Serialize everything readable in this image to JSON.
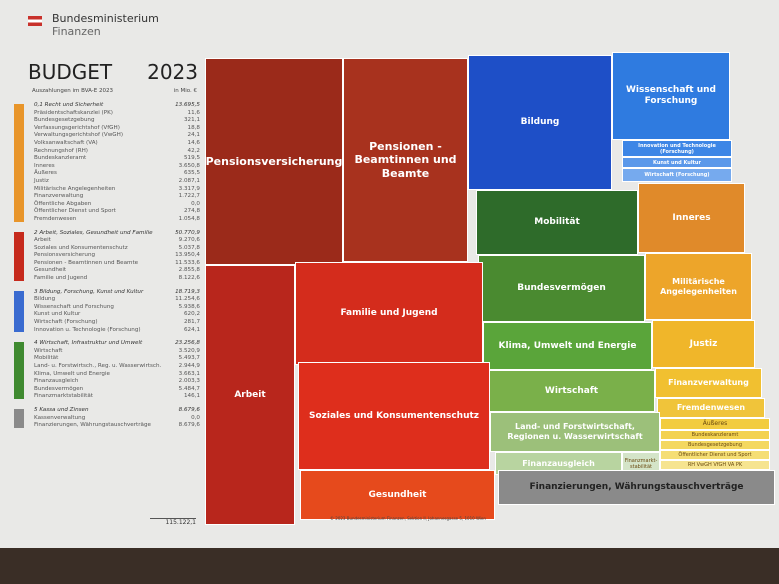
{
  "header": {
    "ministry_line1": "Bundesministerium",
    "ministry_line2": "Finanzen",
    "title": "BUDGET",
    "year": "2023",
    "subtitle": "Auszahlungen im BVA-E 2023",
    "unit": "in Mio. €"
  },
  "total": "115.122,1",
  "footer": "© 2023 Bundesministerium Finanzen, Sektion II, Johannesgasse 5, 1010 Wien",
  "colors": {
    "g1": "#e8952a",
    "g2": "#c62a1c",
    "g3": "#3a6bd0",
    "g4": "#3f8a30",
    "g5": "#8a8a8a"
  },
  "chart_data": {
    "type": "treemap",
    "title": "BUDGET 2023",
    "unit": "Mio. €",
    "groups": [
      {
        "name": "0,1 Recht und Sicherheit",
        "value": "13.695,5",
        "color": "#e8952a",
        "items": [
          [
            "Präsidentschaftskanzlei (PK)",
            "11,6"
          ],
          [
            "Bundesgesetzgebung",
            "321,1"
          ],
          [
            "Verfassungsgerichtshof (VfGH)",
            "18,8"
          ],
          [
            "Verwaltungsgerichtshof (VwGH)",
            "24,1"
          ],
          [
            "Volksanwaltschaft (VA)",
            "14,6"
          ],
          [
            "Rechnungshof (RH)",
            "42,2"
          ],
          [
            "Bundeskanzleramt",
            "519,5"
          ],
          [
            "Inneres",
            "3.650,8"
          ],
          [
            "Äußeres",
            "635,5"
          ],
          [
            "Justiz",
            "2.087,1"
          ],
          [
            "Militärische Angelegenheiten",
            "3.317,9"
          ],
          [
            "Finanzverwaltung",
            "1.722,7"
          ],
          [
            "Öffentliche Abgaben",
            "0,0"
          ],
          [
            "Öffentlicher Dienst und Sport",
            "274,8"
          ],
          [
            "Fremdenwesen",
            "1.054,8"
          ]
        ]
      },
      {
        "name": "2 Arbeit, Soziales, Gesundheit und Familie",
        "value": "50.770,9",
        "color": "#c62a1c",
        "items": [
          [
            "Arbeit",
            "9.270,6"
          ],
          [
            "Soziales und Konsumentenschutz",
            "5.037,8"
          ],
          [
            "Pensionsversicherung",
            "13.950,4"
          ],
          [
            "Pensionen - Beamtinnen und Beamte",
            "11.533,6"
          ],
          [
            "Gesundheit",
            "2.855,8"
          ],
          [
            "Familie und Jugend",
            "8.122,6"
          ]
        ]
      },
      {
        "name": "3 Bildung, Forschung, Kunst und Kultur",
        "value": "18.719,3",
        "color": "#3a6bd0",
        "items": [
          [
            "Bildung",
            "11.254,6"
          ],
          [
            "Wissenschaft und Forschung",
            "5.938,6"
          ],
          [
            "Kunst und Kultur",
            "620,2"
          ],
          [
            "Wirtschaft (Forschung)",
            "281,7"
          ],
          [
            "Innovation u. Technologie (Forschung)",
            "624,1"
          ]
        ]
      },
      {
        "name": "4 Wirtschaft, Infrastruktur und Umwelt",
        "value": "23.256,8",
        "color": "#3f8a30",
        "items": [
          [
            "Wirtschaft",
            "3.520,9"
          ],
          [
            "Mobilität",
            "5.493,7"
          ],
          [
            "Land- u. Forstwirtsch., Reg. u. Wasserwirtsch.",
            "2.944,9"
          ],
          [
            "Klima, Umwelt und Energie",
            "3.663,1"
          ],
          [
            "Finanzausgleich",
            "2.003,3"
          ],
          [
            "Bundesvermögen",
            "5.484,7"
          ],
          [
            "Finanzmarktstabilität",
            "146,1"
          ]
        ]
      },
      {
        "name": "5 Kassa und Zinsen",
        "value": "8.679,6",
        "color": "#8a8a8a",
        "items": [
          [
            "Kassenverwaltung",
            "0,0"
          ],
          [
            "Finanzierungen, Währungstauschverträge",
            "8.679,6"
          ]
        ]
      }
    ]
  },
  "treemap": [
    {
      "label": "Pensionsversicherung",
      "color": "#9b2a1a"
    },
    {
      "label": "Pensionen - Beamtinnen und Beamte",
      "color": "#a8321e"
    },
    {
      "label": "Bildung",
      "color": "#1e4fc7"
    },
    {
      "label": "Wissenschaft und Forschung",
      "color": "#2f7be0"
    },
    {
      "label": "Innovation und Technologie (Forschung)",
      "color": "#3d86e6"
    },
    {
      "label": "Kunst und Kultur",
      "color": "#5a98ea"
    },
    {
      "label": "Wirtschaft (Forschung)",
      "color": "#76aaee"
    },
    {
      "label": "Mobilität",
      "color": "#2e6b2a"
    },
    {
      "label": "Inneres",
      "color": "#e08a2a"
    },
    {
      "label": "Bundesvermögen",
      "color": "#4a8a30"
    },
    {
      "label": "Militärische Angelegenheiten",
      "color": "#eda52a"
    },
    {
      "label": "Klima, Umwelt und Energie",
      "color": "#5aa53a"
    },
    {
      "label": "Justiz",
      "color": "#f0b62a"
    },
    {
      "label": "Wirtschaft",
      "color": "#7ab04a"
    },
    {
      "label": "Finanzverwaltung",
      "color": "#f1c030"
    },
    {
      "label": "Fremdenwesen",
      "color": "#f0c43a"
    },
    {
      "label": "Land- und Forstwirtschaft, Regionen u. Wasserwirtschaft",
      "color": "#9cc07a"
    },
    {
      "label": "Äußeres",
      "color": "#f2cc40"
    },
    {
      "label": "Bundeskanzleramt",
      "color": "#f3d250"
    },
    {
      "label": "Bundesgesetzgebung",
      "color": "#f4d860"
    },
    {
      "label": "Öffentlicher Dienst und Sport",
      "color": "#f5de74"
    },
    {
      "label": "RH   VwGH   VfGH   VA   PK",
      "color": "#f6e490"
    },
    {
      "label": "Finanzausgleich",
      "color": "#b8d4a0"
    },
    {
      "label": "Finanzmarkt-stabilität",
      "color": "#d4e4c8"
    },
    {
      "label": "Finanzierungen, Währungstauschverträge",
      "color": "#8a8a8a"
    },
    {
      "label": "Arbeit",
      "color": "#b8261c"
    },
    {
      "label": "Familie und Jugend",
      "color": "#d42c1c"
    },
    {
      "label": "Soziales und Konsumentenschutz",
      "color": "#de2e1c"
    },
    {
      "label": "Gesundheit",
      "color": "#e64a1c"
    }
  ]
}
